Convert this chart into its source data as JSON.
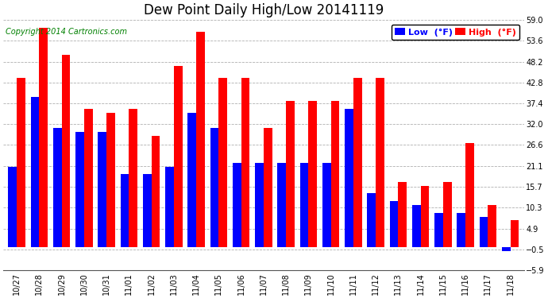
{
  "title": "Dew Point Daily High/Low 20141119",
  "copyright": "Copyright 2014 Cartronics.com",
  "legend_low": "Low  (°F)",
  "legend_high": "High  (°F)",
  "dates": [
    "10/27",
    "10/28",
    "10/29",
    "10/30",
    "10/31",
    "11/01",
    "11/02",
    "11/03",
    "11/04",
    "11/05",
    "11/06",
    "11/07",
    "11/08",
    "11/09",
    "11/10",
    "11/11",
    "11/12",
    "11/13",
    "11/14",
    "11/15",
    "11/16",
    "11/17",
    "11/18"
  ],
  "low": [
    21.0,
    39.0,
    31.0,
    30.0,
    30.0,
    19.0,
    19.0,
    21.0,
    35.0,
    31.0,
    22.0,
    22.0,
    22.0,
    22.0,
    22.0,
    36.0,
    14.0,
    12.0,
    11.0,
    9.0,
    9.0,
    8.0,
    -1.0
  ],
  "high": [
    44.0,
    57.0,
    50.0,
    36.0,
    35.0,
    36.0,
    29.0,
    47.0,
    56.0,
    44.0,
    44.0,
    31.0,
    38.0,
    38.0,
    38.0,
    44.0,
    44.0,
    17.0,
    16.0,
    17.0,
    27.0,
    11.0,
    7.0
  ],
  "ylim": [
    -5.9,
    59.0
  ],
  "yticks": [
    -5.9,
    -0.5,
    4.9,
    10.3,
    15.7,
    21.1,
    26.6,
    32.0,
    37.4,
    42.8,
    48.2,
    53.6,
    59.0
  ],
  "bar_width": 0.38,
  "low_color": "#0000ff",
  "high_color": "#ff0000",
  "bg_color": "#ffffff",
  "grid_color": "#b0b0b0",
  "title_fontsize": 12,
  "legend_fontsize": 8,
  "tick_fontsize": 7,
  "copyright_fontsize": 7
}
